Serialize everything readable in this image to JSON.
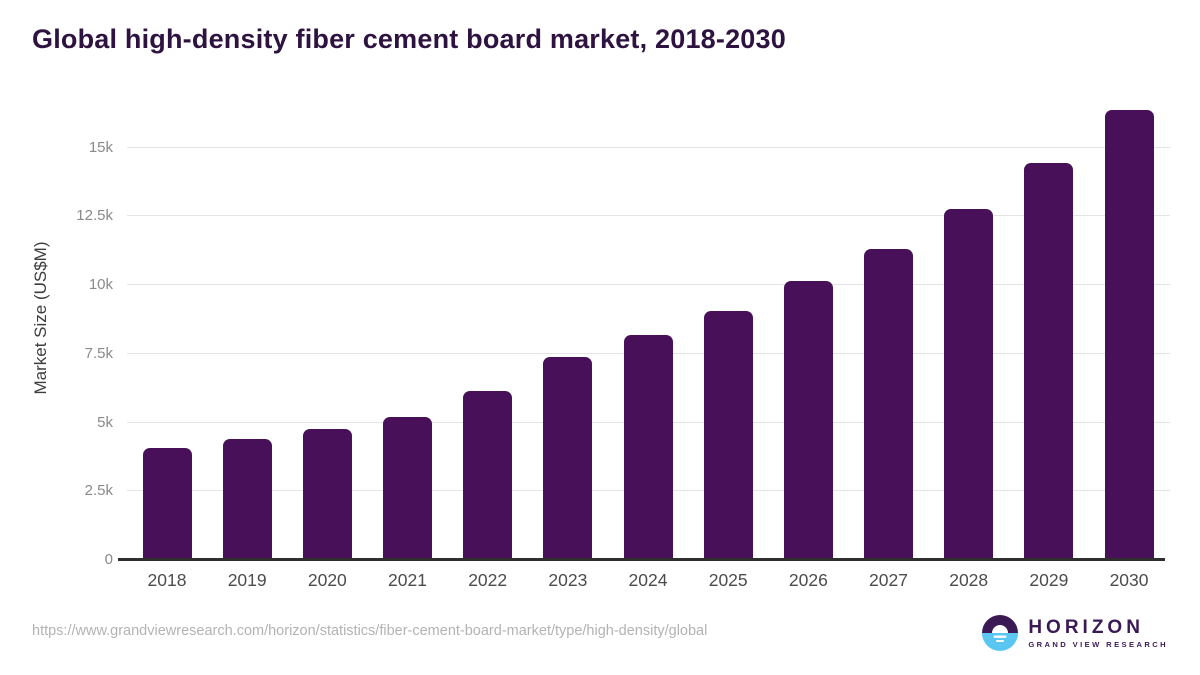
{
  "title": "Global high-density fiber cement board market, 2018-2030",
  "chart_data": {
    "type": "bar",
    "title": "Global high-density fiber cement board market, 2018-2030",
    "categories": [
      "2018",
      "2019",
      "2020",
      "2021",
      "2022",
      "2023",
      "2024",
      "2025",
      "2026",
      "2027",
      "2028",
      "2029",
      "2030"
    ],
    "values": [
      4080,
      4390,
      4760,
      5210,
      6160,
      7370,
      8190,
      9060,
      10150,
      11320,
      12770,
      14430,
      16370
    ],
    "xlabel": "",
    "ylabel": "Market Size (US$M)",
    "ylim": [
      0,
      16500
    ],
    "yticks": {
      "values": [
        0,
        2500,
        5000,
        7500,
        10000,
        12500,
        15000
      ],
      "labels": [
        "0",
        "2.5k",
        "5k",
        "7.5k",
        "10k",
        "12.5k",
        "15k"
      ]
    },
    "grid": true,
    "legend": "none",
    "bar_color": "#481059"
  },
  "colors": {
    "title": "#2e1240",
    "bar": "#481059",
    "gridline": "#e4e4e4",
    "axis_line": "#2e2e2e",
    "ytick_text": "#8a8a8a",
    "xtick_text": "#4c4c4c",
    "url_text": "#b3b3b3",
    "logo_purple": "#3b1954",
    "logo_blue": "#5bc6f2"
  },
  "footer": {
    "source_url": "https://www.grandviewresearch.com/horizon/statistics/fiber-cement-board-market/type/high-density/global",
    "logo": {
      "name": "HORIZON",
      "subtitle": "GRAND VIEW RESEARCH",
      "icon": "horizon-sun-over-water-icon"
    }
  }
}
